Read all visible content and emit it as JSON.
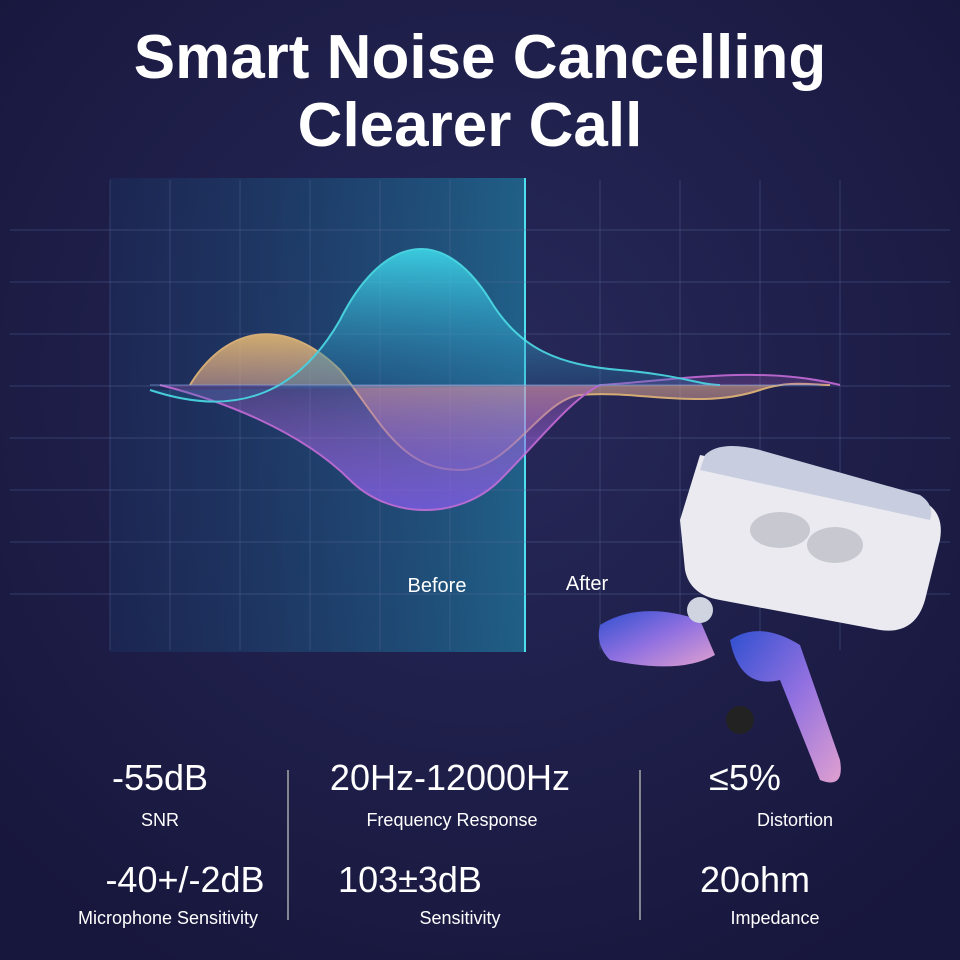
{
  "header": {
    "title_lines": [
      "Smart Noise Cancelling",
      "Clearer Call"
    ]
  },
  "waveform": {
    "before_label": "Before",
    "after_label": "After"
  },
  "specs": [
    {
      "value": "-55dB",
      "label": "SNR"
    },
    {
      "value": "20Hz-12000Hz",
      "label": "Frequency Response"
    },
    {
      "value": "≤5%",
      "label": "Distortion"
    },
    {
      "value": "-40+/-2dB",
      "label": "Microphone Sensitivity"
    },
    {
      "value": "103±3dB",
      "label": "Sensitivity"
    },
    {
      "value": "20ohm",
      "label": "Impedance"
    }
  ]
}
